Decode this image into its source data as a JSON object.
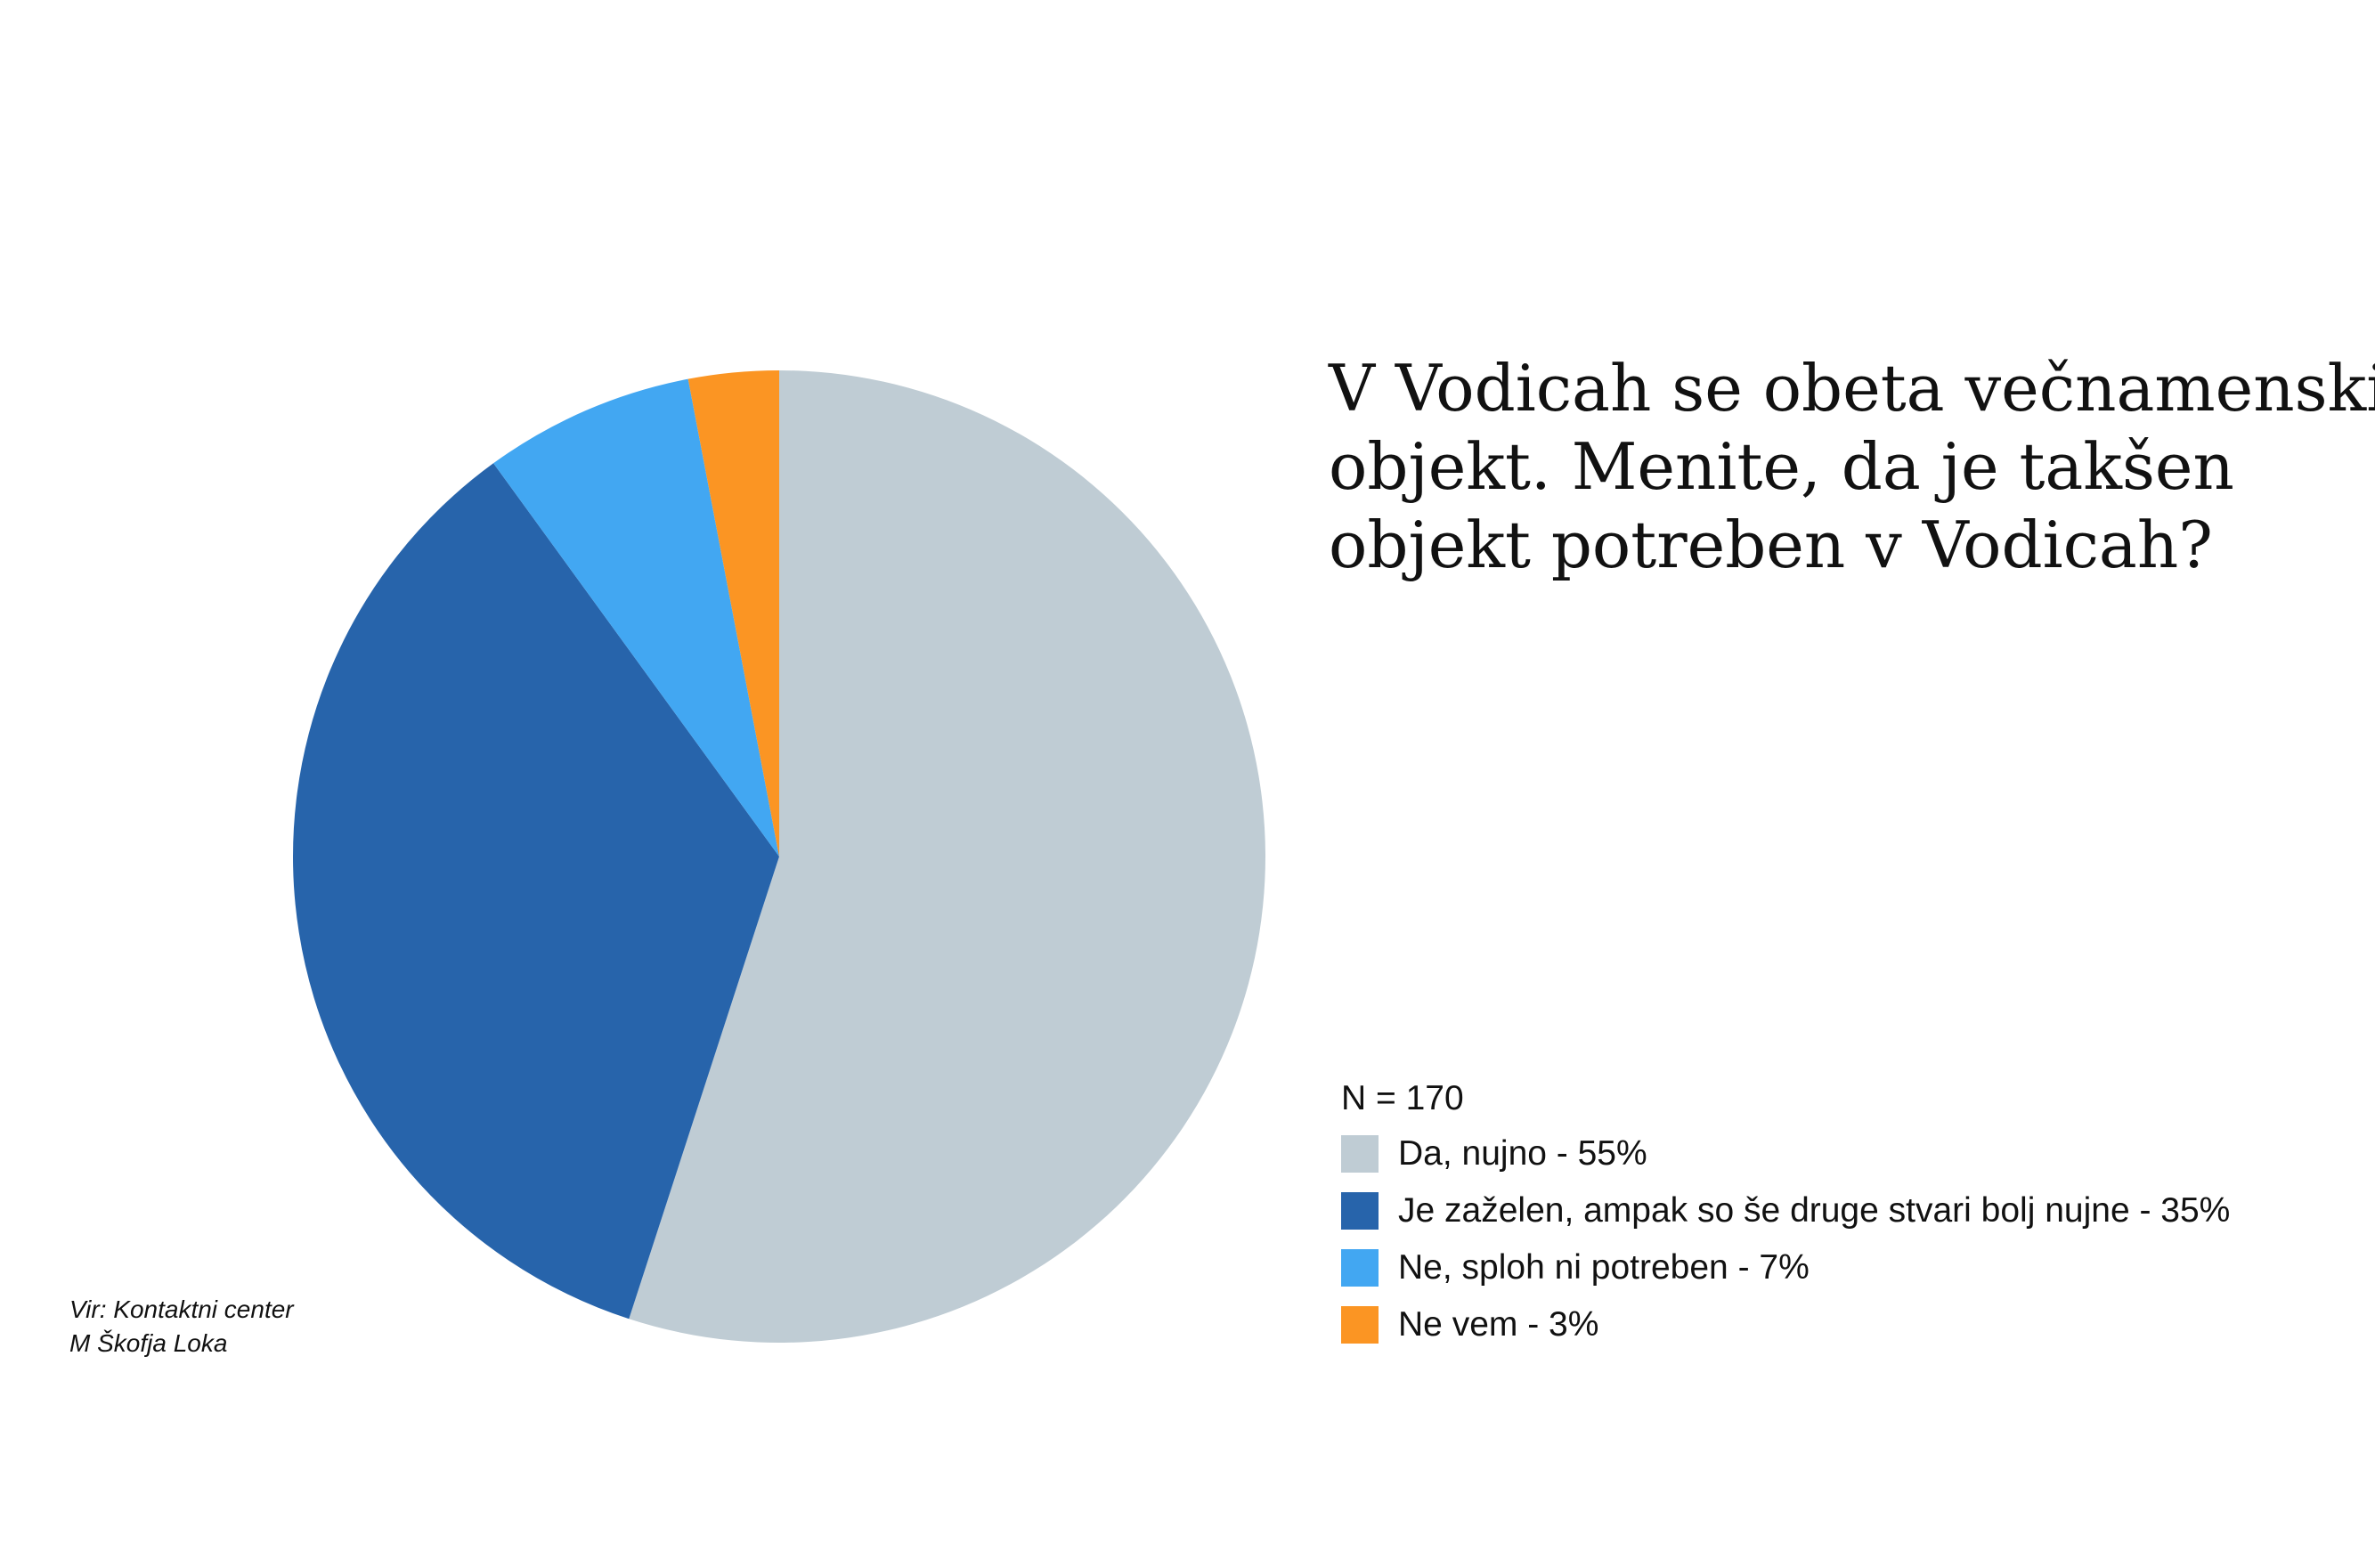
{
  "title_lines": [
    "V Vodicah se obeta večnamenski",
    "objekt. Menite, da je takšen",
    "objekt potreben v Vodicah?"
  ],
  "sample_size": "N = 170",
  "source_lines": [
    "Vir: Kontaktni center",
    "M Škofja Loka"
  ],
  "chart_data": {
    "type": "pie",
    "title": "V Vodicah se obeta večnamenski objekt. Menite, da je takšen objekt potreben v Vodicah?",
    "start_angle": "12 o'clock",
    "direction": "clockwise",
    "legend_position": "bottom-right",
    "categories": [
      "Da, nujno - 55%",
      "Je zaželen, ampak so še druge stvari bolj nujne - 35%",
      "Ne, sploh ni potreben - 7%",
      "Ne vem  - 3%"
    ],
    "values": [
      55,
      35,
      7,
      3
    ],
    "colors": [
      "#bfccd4",
      "#2764ab",
      "#42a7f2",
      "#fb9523"
    ]
  }
}
